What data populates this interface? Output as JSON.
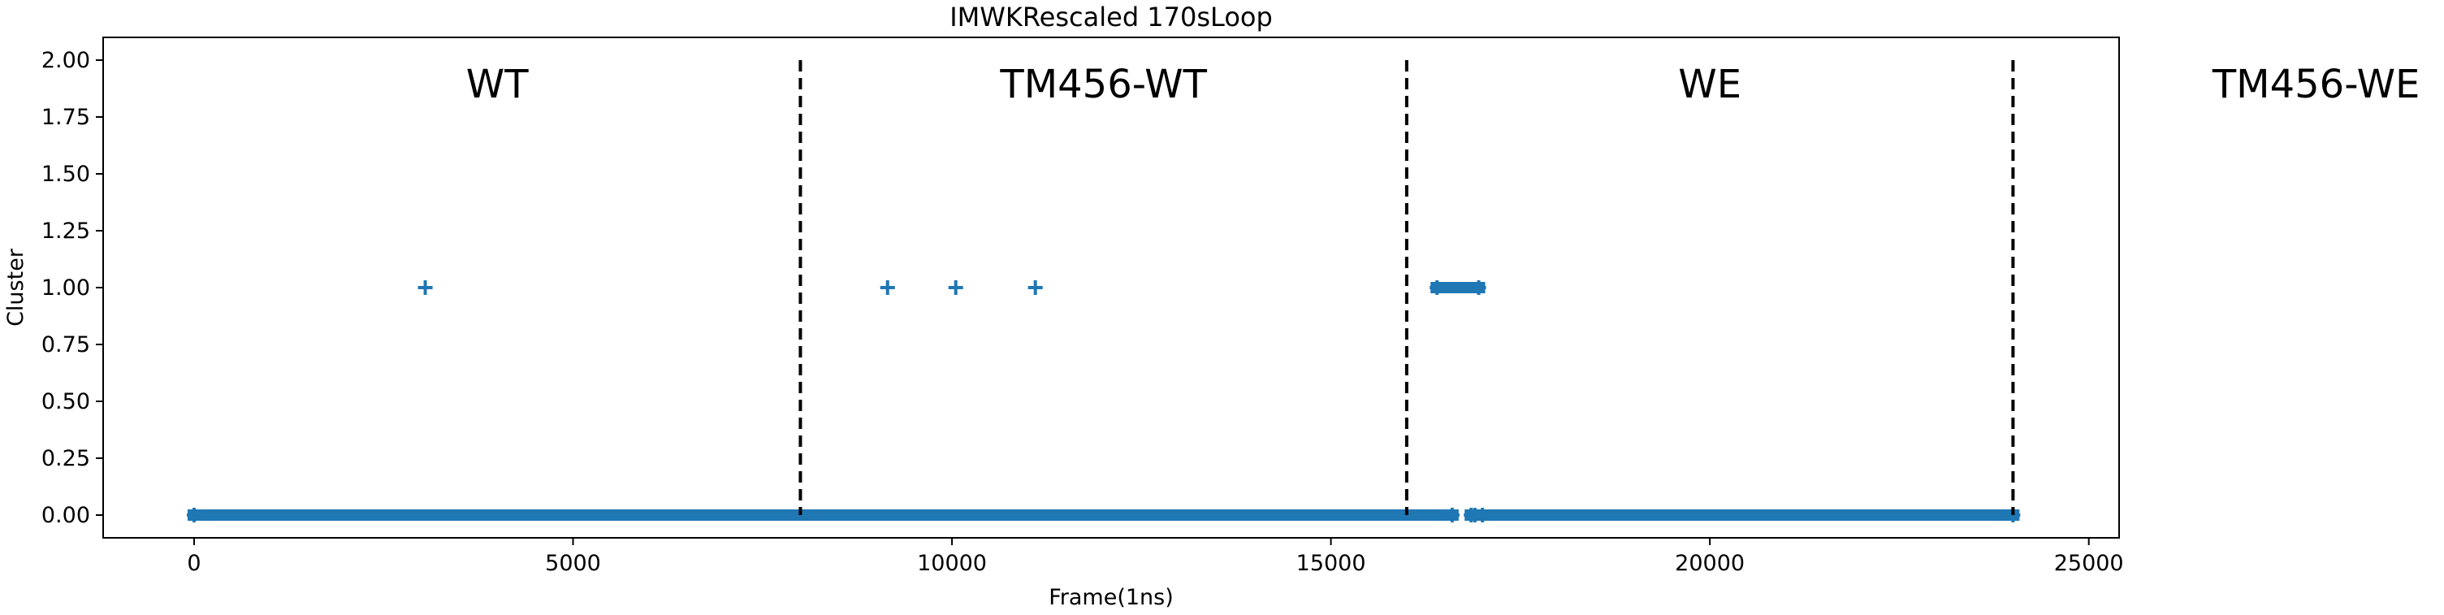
{
  "chart_data": {
    "type": "scatter",
    "title": "IMWKRescaled 170sLoop",
    "xlabel": "Frame(1ns)",
    "ylabel": "Cluster",
    "xlim": [
      -1200,
      25400
    ],
    "ylim": [
      -0.1,
      2.1
    ],
    "x_ticks": [
      0,
      5000,
      10000,
      15000,
      20000,
      25000
    ],
    "x_tick_labels": [
      "0",
      "5000",
      "10000",
      "15000",
      "20000",
      "25000"
    ],
    "y_ticks": [
      0.0,
      0.25,
      0.5,
      0.75,
      1.0,
      1.25,
      1.5,
      1.75,
      2.0
    ],
    "y_tick_labels": [
      "0.00",
      "0.25",
      "0.50",
      "0.75",
      "1.00",
      "1.25",
      "1.50",
      "1.75",
      "2.00"
    ],
    "marker": "+",
    "color": "#1f77b4",
    "grid": false,
    "series": [
      {
        "segments": [
          {
            "y": 0,
            "x_start": 0,
            "x_end": 16600
          },
          {
            "y": 0,
            "x_start": 16850,
            "x_end": 16900
          },
          {
            "y": 0,
            "x_start": 17000,
            "x_end": 24000
          },
          {
            "y": 1,
            "x_start": 16400,
            "x_end": 16950
          }
        ],
        "points": [
          {
            "x": 3050,
            "y": 1
          },
          {
            "x": 9150,
            "y": 1
          },
          {
            "x": 10050,
            "y": 1
          },
          {
            "x": 11100,
            "y": 1
          }
        ]
      }
    ],
    "vlines": [
      {
        "x": 8000,
        "style": "dashed",
        "color": "#000000"
      },
      {
        "x": 16000,
        "style": "dashed",
        "color": "#000000"
      },
      {
        "x": 24000,
        "style": "dashed",
        "color": "#000000"
      }
    ],
    "region_labels": [
      {
        "text": "WT",
        "x": 4000,
        "y": 1.9
      },
      {
        "text": "TM456-WT",
        "x": 12000,
        "y": 1.9
      },
      {
        "text": "WE",
        "x": 20000,
        "y": 1.9
      },
      {
        "text": "TM456-WE",
        "x": 28000,
        "y": 1.9
      }
    ]
  }
}
